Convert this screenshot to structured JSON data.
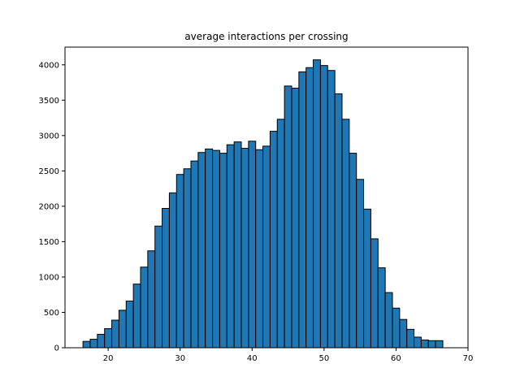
{
  "chart_data": {
    "type": "bar",
    "title": "average interactions per crossing",
    "xlabel": "",
    "ylabel": "",
    "xlim": [
      14,
      70
    ],
    "ylim": [
      0,
      4250
    ],
    "x_ticks": [
      20,
      30,
      40,
      50,
      60,
      70
    ],
    "y_ticks": [
      0,
      500,
      1000,
      1500,
      2000,
      2500,
      3000,
      3500,
      4000
    ],
    "bin_start": 16.5,
    "bin_width": 1.0,
    "values": [
      90,
      120,
      190,
      270,
      390,
      530,
      660,
      900,
      1140,
      1370,
      1720,
      1970,
      2190,
      2450,
      2530,
      2640,
      2760,
      2810,
      2790,
      2750,
      2870,
      2910,
      2820,
      2920,
      2800,
      2850,
      3060,
      3230,
      3700,
      3670,
      3900,
      3960,
      4070,
      3990,
      3920,
      3590,
      3230,
      2750,
      2380,
      1960,
      1540,
      1130,
      780,
      560,
      400,
      260,
      150,
      110,
      100,
      100
    ],
    "bar_color": "#1f77b4",
    "edge_color": "#000000",
    "grid": false,
    "legend": "none"
  }
}
